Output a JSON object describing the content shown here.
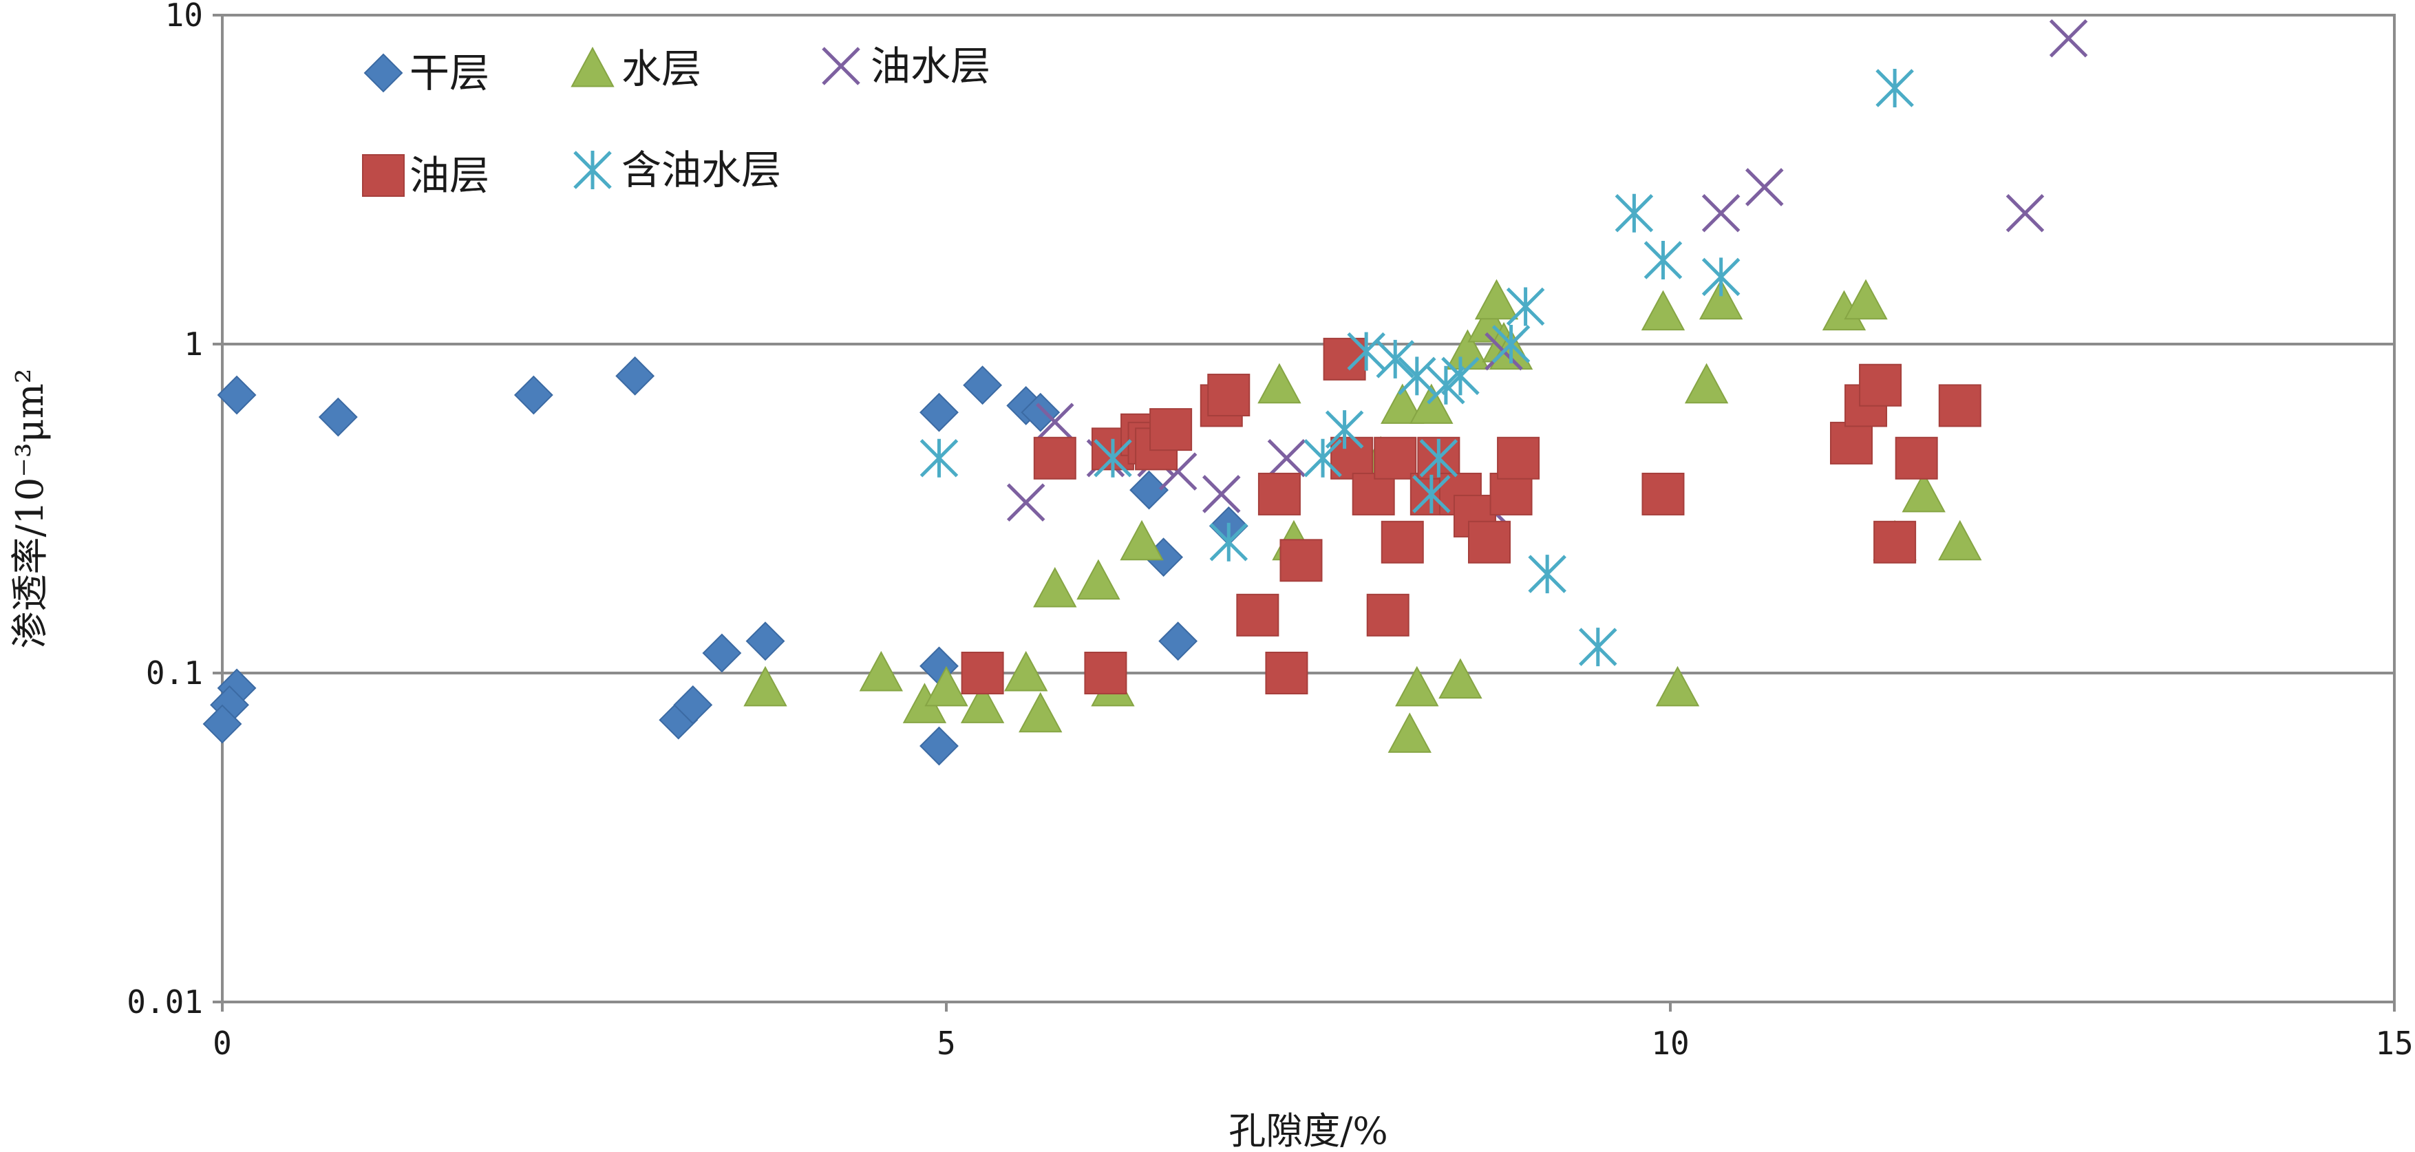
{
  "chart_data": {
    "type": "scatter",
    "xlabel": "孔隙度/%",
    "ylabel": "渗透率/10⁻³μm²",
    "xlim": [
      0,
      15
    ],
    "ylim": [
      0.01,
      10
    ],
    "yscale": "log",
    "x_ticks": [
      0,
      5,
      10,
      15
    ],
    "x_tick_labels": [
      "0",
      "5",
      "10",
      "15"
    ],
    "y_ticks": [
      0.01,
      0.1,
      1,
      10
    ],
    "y_tick_labels": [
      "0.01",
      "0.1",
      "1",
      "10"
    ],
    "grid": "horizontal",
    "legend_position": "top-left",
    "series": [
      {
        "name": "干层",
        "marker": "diamond",
        "color": "#4a7ebb",
        "points": [
          [
            0.1,
            0.7
          ],
          [
            0.8,
            0.6
          ],
          [
            2.15,
            0.7
          ],
          [
            2.85,
            0.8
          ],
          [
            0.1,
            0.09
          ],
          [
            0.05,
            0.08
          ],
          [
            0,
            0.07
          ],
          [
            3.15,
            0.072
          ],
          [
            3.25,
            0.08
          ],
          [
            3.45,
            0.115
          ],
          [
            3.75,
            0.125
          ],
          [
            4.95,
            0.105
          ],
          [
            4.95,
            0.06
          ],
          [
            4.95,
            0.62
          ],
          [
            5.25,
            0.75
          ],
          [
            5.55,
            0.65
          ],
          [
            5.65,
            0.62
          ],
          [
            6.4,
            0.36
          ],
          [
            6.5,
            0.225
          ],
          [
            6.6,
            0.125
          ],
          [
            6.95,
            0.28
          ]
        ]
      },
      {
        "name": "水层",
        "marker": "triangle",
        "color": "#98b954",
        "points": [
          [
            3.75,
            0.09
          ],
          [
            4.55,
            0.1
          ],
          [
            4.85,
            0.08
          ],
          [
            5.0,
            0.09
          ],
          [
            5.25,
            0.08
          ],
          [
            5.55,
            0.1
          ],
          [
            5.65,
            0.075
          ],
          [
            5.75,
            0.18
          ],
          [
            6.05,
            0.19
          ],
          [
            6.15,
            0.09
          ],
          [
            6.35,
            0.25
          ],
          [
            7.3,
            0.75
          ],
          [
            7.4,
            0.25
          ],
          [
            8.0,
            0.45
          ],
          [
            8.15,
            0.65
          ],
          [
            8.25,
            0.09
          ],
          [
            8.2,
            0.065
          ],
          [
            8.35,
            0.65
          ],
          [
            8.55,
            0.095
          ],
          [
            8.6,
            0.95
          ],
          [
            8.75,
            1.15
          ],
          [
            8.8,
            1.35
          ],
          [
            8.85,
            1.0
          ],
          [
            8.9,
            0.95
          ],
          [
            9.95,
            1.25
          ],
          [
            10.05,
            0.09
          ],
          [
            10.25,
            0.75
          ],
          [
            10.35,
            1.35
          ],
          [
            11.2,
            1.25
          ],
          [
            11.35,
            1.35
          ],
          [
            11.55,
            0.25
          ],
          [
            11.75,
            0.35
          ],
          [
            12.0,
            0.25
          ]
        ]
      },
      {
        "name": "油水层",
        "marker": "x",
        "color": "#7d60a0",
        "points": [
          [
            5.55,
            0.33
          ],
          [
            5.75,
            0.58
          ],
          [
            6.1,
            0.45
          ],
          [
            6.45,
            0.45
          ],
          [
            6.6,
            0.41
          ],
          [
            6.9,
            0.35
          ],
          [
            7.35,
            0.45
          ],
          [
            8.75,
            0.32
          ],
          [
            8.85,
            0.95
          ],
          [
            10.35,
            2.5
          ],
          [
            10.65,
            3.0
          ],
          [
            12.45,
            2.5
          ],
          [
            12.75,
            8.5
          ]
        ]
      },
      {
        "name": "油层",
        "marker": "square",
        "color": "#be4b48",
        "points": [
          [
            5.25,
            0.1
          ],
          [
            5.75,
            0.45
          ],
          [
            6.1,
            0.1
          ],
          [
            6.15,
            0.48
          ],
          [
            6.35,
            0.53
          ],
          [
            6.4,
            0.5
          ],
          [
            6.45,
            0.48
          ],
          [
            6.55,
            0.55
          ],
          [
            6.9,
            0.65
          ],
          [
            6.95,
            0.7
          ],
          [
            7.15,
            0.15
          ],
          [
            7.35,
            0.1
          ],
          [
            7.3,
            0.35
          ],
          [
            7.45,
            0.22
          ],
          [
            7.75,
            0.9
          ],
          [
            7.8,
            0.45
          ],
          [
            7.95,
            0.35
          ],
          [
            8.05,
            0.15
          ],
          [
            8.1,
            0.45
          ],
          [
            8.15,
            0.25
          ],
          [
            8.35,
            0.35
          ],
          [
            8.4,
            0.45
          ],
          [
            8.55,
            0.35
          ],
          [
            8.65,
            0.3
          ],
          [
            8.75,
            0.25
          ],
          [
            8.9,
            0.35
          ],
          [
            8.95,
            0.45
          ],
          [
            9.95,
            0.35
          ],
          [
            11.25,
            0.5
          ],
          [
            11.35,
            0.65
          ],
          [
            11.45,
            0.75
          ],
          [
            11.55,
            0.25
          ],
          [
            11.7,
            0.45
          ],
          [
            12.0,
            0.65
          ]
        ]
      },
      {
        "name": "含油水层",
        "marker": "asterisk",
        "color": "#4bacc6",
        "points": [
          [
            4.95,
            0.45
          ],
          [
            6.15,
            0.45
          ],
          [
            6.95,
            0.25
          ],
          [
            7.6,
            0.45
          ],
          [
            7.75,
            0.55
          ],
          [
            7.9,
            0.95
          ],
          [
            8.1,
            0.9
          ],
          [
            8.25,
            0.8
          ],
          [
            8.35,
            0.35
          ],
          [
            8.4,
            0.45
          ],
          [
            8.45,
            0.75
          ],
          [
            8.55,
            0.8
          ],
          [
            8.9,
            1.0
          ],
          [
            9.0,
            1.3
          ],
          [
            9.15,
            0.2
          ],
          [
            9.5,
            0.12
          ],
          [
            9.75,
            2.5
          ],
          [
            9.95,
            1.8
          ],
          [
            10.35,
            1.6
          ],
          [
            11.55,
            6.0
          ]
        ]
      }
    ]
  }
}
